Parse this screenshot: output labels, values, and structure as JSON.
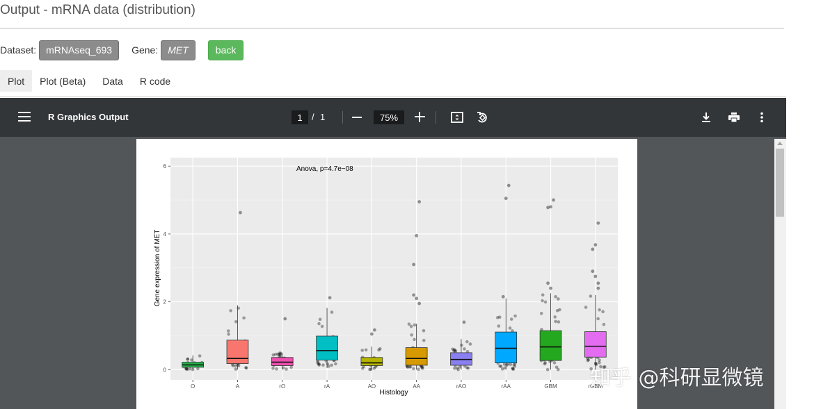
{
  "header": {
    "title": "Output - mRNA data (distribution)"
  },
  "controls": {
    "dataset_label": "Dataset:",
    "dataset_value": "mRNAseq_693",
    "gene_label": "Gene:",
    "gene_value": "MET",
    "back_label": "back"
  },
  "tabs": [
    {
      "label": "Plot",
      "active": true
    },
    {
      "label": "Plot (Beta)"
    },
    {
      "label": "Data"
    },
    {
      "label": "R code"
    }
  ],
  "viewer": {
    "title": "R Graphics Output",
    "page_current": "1",
    "page_sep": "/",
    "page_total": "1",
    "zoom": "75%",
    "icons": [
      "menu-icon",
      "fit-page-icon",
      "rotate-icon",
      "download-icon",
      "print-icon",
      "more-vert-icon"
    ]
  },
  "watermark": "知乎 @科研显微镜",
  "chart_data": {
    "type": "box",
    "annotation": "Anova, p=4.7e−08",
    "xlabel": "Histology",
    "ylabel": "Gene expression of MET",
    "ylim": [
      -0.3,
      6.25
    ],
    "yticks": [
      0,
      2,
      4,
      6
    ],
    "grid": true,
    "background": "#ebebeb",
    "categories": [
      "O",
      "A",
      "rO",
      "rA",
      "AO",
      "AA",
      "rAO",
      "rAA",
      "GBM",
      "rGBM"
    ],
    "colors": [
      "#24b24a",
      "#f8766d",
      "#ee4fb0",
      "#00bfc4",
      "#b5b500",
      "#d69a00",
      "#8a7ff0",
      "#00a9ff",
      "#23a81f",
      "#e36cf0"
    ],
    "boxes": [
      {
        "q1": 0.07,
        "median": 0.14,
        "q3": 0.22,
        "low": 0.0,
        "high": 0.42
      },
      {
        "q1": 0.18,
        "median": 0.33,
        "q3": 0.87,
        "low": 0.0,
        "high": 1.9
      },
      {
        "q1": 0.12,
        "median": 0.22,
        "q3": 0.36,
        "low": 0.0,
        "high": 0.5
      },
      {
        "q1": 0.28,
        "median": 0.56,
        "q3": 0.99,
        "low": 0.05,
        "high": 1.82
      },
      {
        "q1": 0.12,
        "median": 0.2,
        "q3": 0.36,
        "low": 0.0,
        "high": 0.68
      },
      {
        "q1": 0.13,
        "median": 0.33,
        "q3": 0.65,
        "low": 0.0,
        "high": 1.35
      },
      {
        "q1": 0.13,
        "median": 0.3,
        "q3": 0.5,
        "low": 0.0,
        "high": 0.9
      },
      {
        "q1": 0.2,
        "median": 0.63,
        "q3": 1.11,
        "low": 0.0,
        "high": 2.1
      },
      {
        "q1": 0.27,
        "median": 0.67,
        "q3": 1.15,
        "low": 0.0,
        "high": 2.25
      },
      {
        "q1": 0.37,
        "median": 0.69,
        "q3": 1.12,
        "low": 0.0,
        "high": 2.2
      }
    ],
    "outliers": [
      {
        "group": "A",
        "values": [
          4.63
        ]
      },
      {
        "group": "rO",
        "values": [
          1.5
        ]
      },
      {
        "group": "rA",
        "values": [
          2.12
        ]
      },
      {
        "group": "AO",
        "values": [
          1.17,
          1.05
        ]
      },
      {
        "group": "AA",
        "values": [
          4.95,
          3.95,
          3.1,
          2.2,
          2.1,
          1.95
        ]
      },
      {
        "group": "rAO",
        "values": [
          1.4
        ]
      },
      {
        "group": "rAA",
        "values": [
          5.43,
          5.05,
          2.15
        ]
      },
      {
        "group": "GBM",
        "values": [
          5.0,
          4.8,
          4.78,
          2.55,
          2.4
        ]
      },
      {
        "group": "rGBM",
        "values": [
          4.32,
          3.68,
          3.55,
          2.9,
          2.75,
          2.55,
          2.4
        ]
      }
    ]
  }
}
